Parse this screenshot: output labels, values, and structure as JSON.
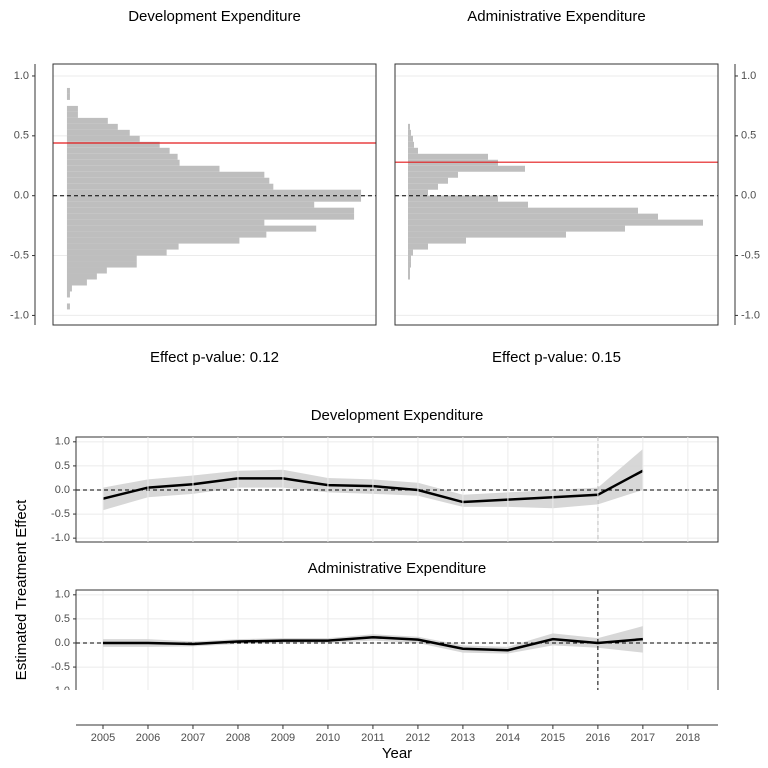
{
  "chart_data": [
    {
      "type": "histogram",
      "title": "Development Expenditure",
      "caption": "Effect p-value:  0.12",
      "color": "#bebebe",
      "bins": [
        -0.95,
        -0.9,
        -0.85,
        -0.8,
        -0.75,
        -0.7,
        -0.65,
        -0.6,
        -0.55,
        -0.5,
        -0.45,
        -0.4,
        -0.35,
        -0.3,
        -0.25,
        -0.2,
        -0.15,
        -0.1,
        -0.05,
        0,
        0.05,
        0.1,
        0.15,
        0.2,
        0.25,
        0.3,
        0.35,
        0.4,
        0.45,
        0.5,
        0.55,
        0.6,
        0.65,
        0.7,
        0.75,
        0.8,
        0.85,
        0.9
      ],
      "counts": [
        3,
        0,
        3,
        5,
        20,
        30,
        40,
        70,
        70,
        100,
        112,
        173,
        200,
        250,
        198,
        288,
        288,
        248,
        295,
        295,
        207,
        203,
        198,
        153,
        113,
        111,
        103,
        93,
        73,
        63,
        51,
        41,
        11,
        11,
        0,
        3,
        3
      ],
      "xlim": [
        -14,
        310
      ],
      "ylim": [
        -1.08,
        1.1
      ],
      "yticks": [
        {
          "value": -1,
          "label": "-1.0"
        },
        {
          "value": -0.5,
          "label": "-0.5"
        },
        {
          "value": 0,
          "label": "0.0"
        },
        {
          "value": 0.5,
          "label": "0.5"
        },
        {
          "value": 1,
          "label": "1.0"
        }
      ],
      "grid": true,
      "zero_line": 0,
      "effect_line": 0.44,
      "effect_color": "#e41a1c",
      "y_axis_side": "left"
    },
    {
      "type": "histogram",
      "title": "Administrative Expenditure",
      "caption": "Effect p-value:  0.15",
      "color": "#bebebe",
      "bins": [
        -0.7,
        -0.65,
        -0.6,
        -0.55,
        -0.5,
        -0.45,
        -0.4,
        -0.35,
        -0.3,
        -0.25,
        -0.2,
        -0.15,
        -0.1,
        -0.05,
        0,
        0.05,
        0.1,
        0.15,
        0.2,
        0.25,
        0.3,
        0.35,
        0.4,
        0.45,
        0.5,
        0.55,
        0.6
      ],
      "counts": [
        2,
        2,
        3,
        3,
        5,
        20,
        58,
        158,
        217,
        295,
        250,
        230,
        120,
        90,
        20,
        30,
        40,
        50,
        117,
        90,
        80,
        10,
        6,
        5,
        3,
        2
      ],
      "xlim": [
        -13,
        310
      ],
      "ylim": [
        -1.08,
        1.1
      ],
      "yticks": [
        {
          "value": -1,
          "label": "-1.0"
        },
        {
          "value": -0.5,
          "label": "-0.5"
        },
        {
          "value": 0,
          "label": "0.0"
        },
        {
          "value": 0.5,
          "label": "0.5"
        },
        {
          "value": 1,
          "label": "1.0"
        }
      ],
      "grid": true,
      "zero_line": 0,
      "effect_line": 0.28,
      "effect_color": "#e41a1c",
      "y_axis_side": "right"
    },
    {
      "type": "line",
      "title": "Development Expenditure",
      "y_label": "Estimated Treatment Effect",
      "color": "#000000",
      "band_color": "#d3d3d3",
      "x": [
        2005,
        2006,
        2007,
        2008,
        2009,
        2010,
        2011,
        2012,
        2013,
        2014,
        2015,
        2016,
        2017
      ],
      "values": [
        -0.18,
        0.05,
        0.12,
        0.24,
        0.24,
        0.1,
        0.08,
        0.0,
        -0.25,
        -0.2,
        -0.15,
        -0.1,
        0.4
      ],
      "lower": [
        -0.42,
        -0.15,
        -0.08,
        0.05,
        0.05,
        -0.05,
        -0.08,
        -0.12,
        -0.35,
        -0.35,
        -0.38,
        -0.3,
        0.0
      ],
      "upper": [
        0.05,
        0.22,
        0.3,
        0.4,
        0.42,
        0.25,
        0.22,
        0.15,
        -0.1,
        -0.05,
        0.0,
        0.05,
        0.85
      ],
      "xlim": [
        2004.4,
        2018.67
      ],
      "ylim": [
        -1.08,
        1.1
      ],
      "yticks": [
        {
          "value": -1,
          "label": "-1.0"
        },
        {
          "value": -0.5,
          "label": "-0.5"
        },
        {
          "value": 0,
          "label": "0.0"
        },
        {
          "value": 0.5,
          "label": "0.5"
        },
        {
          "value": 1,
          "label": "1.0"
        }
      ],
      "grid": true,
      "zero_line": 0,
      "vline": 2016
    },
    {
      "type": "line",
      "title": "Administrative Expenditure",
      "x_label": "Year",
      "color": "#000000",
      "band_color": "#d3d3d3",
      "x": [
        2005,
        2006,
        2007,
        2008,
        2009,
        2010,
        2011,
        2012,
        2013,
        2014,
        2015,
        2016,
        2017
      ],
      "values": [
        0.0,
        0.0,
        -0.02,
        0.03,
        0.05,
        0.05,
        0.12,
        0.07,
        -0.12,
        -0.15,
        0.08,
        0.0,
        0.08
      ],
      "lower": [
        -0.08,
        -0.08,
        -0.07,
        -0.02,
        0.0,
        0.0,
        0.05,
        0.0,
        -0.2,
        -0.22,
        -0.05,
        -0.1,
        -0.2
      ],
      "upper": [
        0.08,
        0.08,
        0.03,
        0.08,
        0.1,
        0.1,
        0.18,
        0.13,
        -0.05,
        -0.08,
        0.2,
        0.1,
        0.35
      ],
      "xlim": [
        2004.4,
        2018.67
      ],
      "ylim": [
        -1.08,
        1.1
      ],
      "xticks": [
        2005,
        2006,
        2007,
        2008,
        2009,
        2010,
        2011,
        2012,
        2013,
        2014,
        2015,
        2016,
        2017,
        2018
      ],
      "yticks": [
        {
          "value": -1,
          "label": "-1.0"
        },
        {
          "value": -0.5,
          "label": "-0.5"
        },
        {
          "value": 0,
          "label": "0.0"
        },
        {
          "value": 0.5,
          "label": "0.5"
        },
        {
          "value": 1,
          "label": "1.0"
        }
      ],
      "grid": true,
      "zero_line": 0,
      "vline": 2016
    }
  ]
}
